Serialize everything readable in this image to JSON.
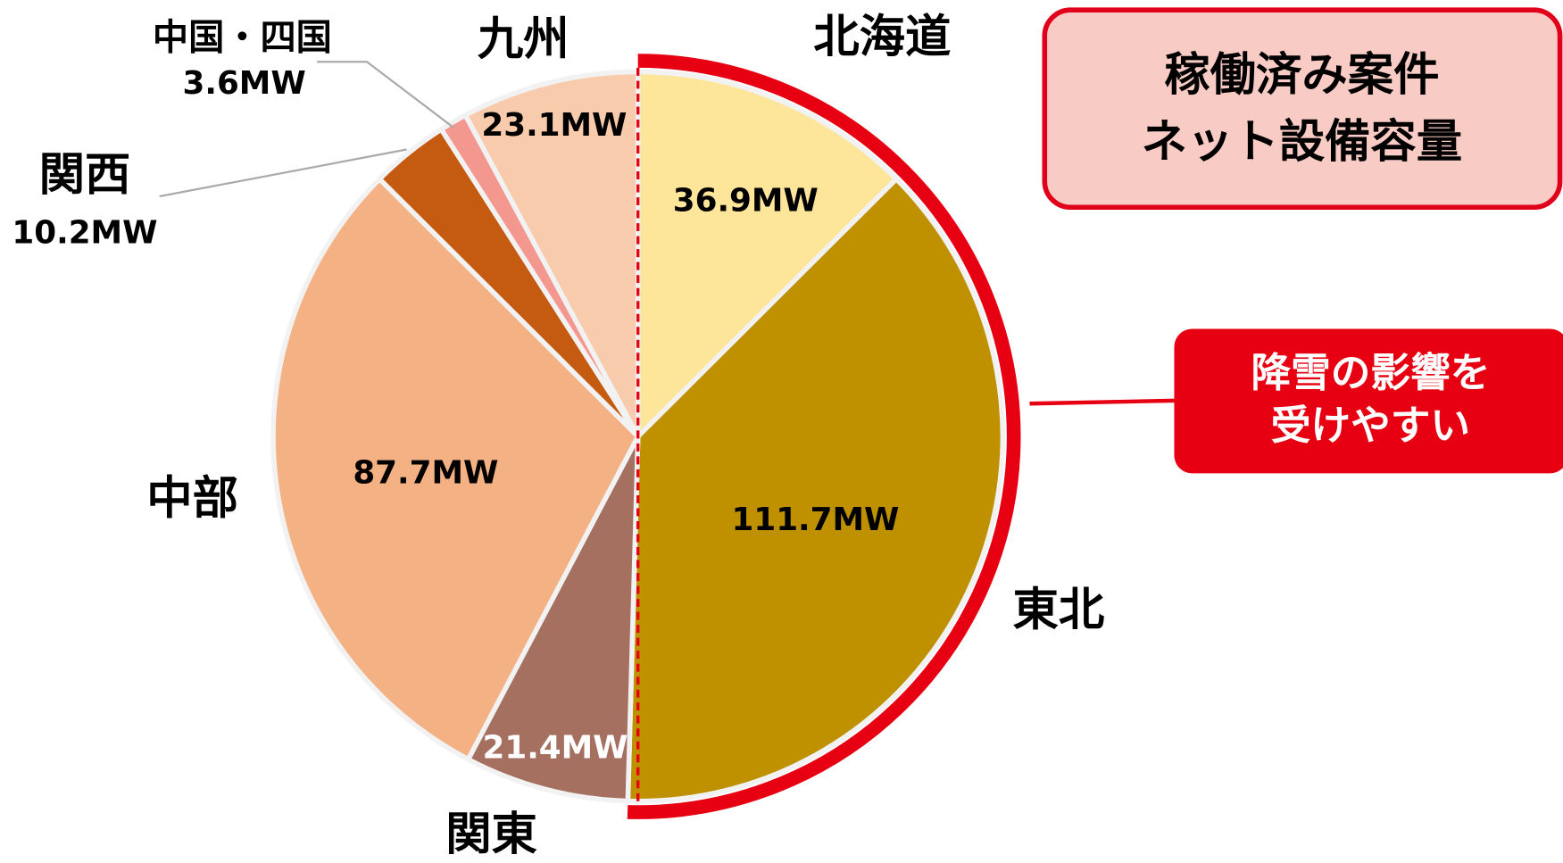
{
  "chart_data": {
    "type": "pie",
    "title": [
      "稼働済み案件",
      "ネット設備容量"
    ],
    "annotation": [
      "降雪の影響を",
      "受けやすい"
    ],
    "categories": [
      "北海道",
      "東北",
      "関東",
      "中部",
      "関西",
      "中国・四国",
      "九州"
    ],
    "values": [
      36.9,
      111.7,
      21.4,
      87.7,
      10.2,
      3.6,
      23.1
    ],
    "value_labels": [
      "36.9MW",
      "111.7MW",
      "21.4MW",
      "87.7MW",
      "10.2MW",
      "3.6MW",
      "23.1MW"
    ],
    "colors": [
      "#fde59a",
      "#bf9000",
      "#a57060",
      "#f4b183",
      "#c55a11",
      "#f4978e",
      "#f8cbad"
    ],
    "start_angle": 0,
    "direction": "clockwise"
  }
}
